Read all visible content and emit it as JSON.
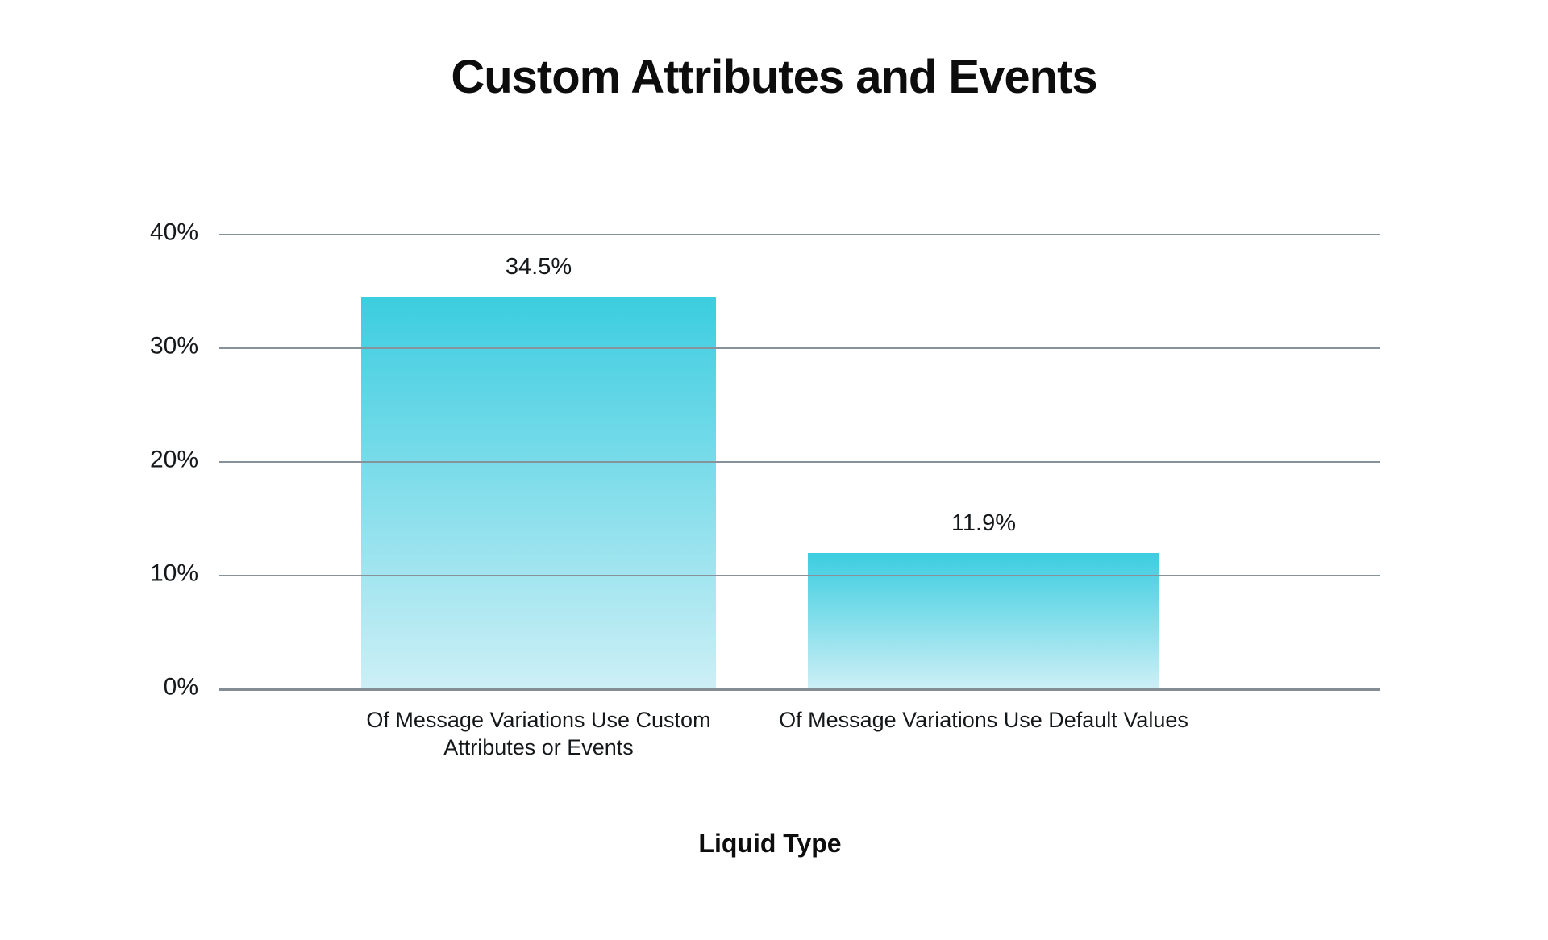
{
  "page": {
    "background": "#ffffff"
  },
  "chart_data": {
    "type": "bar",
    "title": "Custom Attributes and Events",
    "xlabel": "Liquid Type",
    "ylabel": "",
    "categories": [
      "Of Message Variations Use Custom Attributes or Events",
      "Of Message Variations Use Default Values"
    ],
    "values": [
      34.5,
      11.9
    ],
    "value_labels": [
      "34.5%",
      "11.9%"
    ],
    "ylim": [
      0,
      40
    ],
    "yticks": [
      {
        "value": 40,
        "label": "40%"
      },
      {
        "value": 30,
        "label": "30%"
      },
      {
        "value": 20,
        "label": "20%"
      },
      {
        "value": 10,
        "label": "10%"
      },
      {
        "value": 0,
        "label": "0%"
      }
    ],
    "grid": true,
    "legend": false,
    "colors": {
      "bar_gradient_top": "#3bcde0",
      "bar_gradient_bottom": "#cdeff6",
      "gridline": "#87939a",
      "baseline": "#848d93",
      "text": "#15181a"
    }
  }
}
